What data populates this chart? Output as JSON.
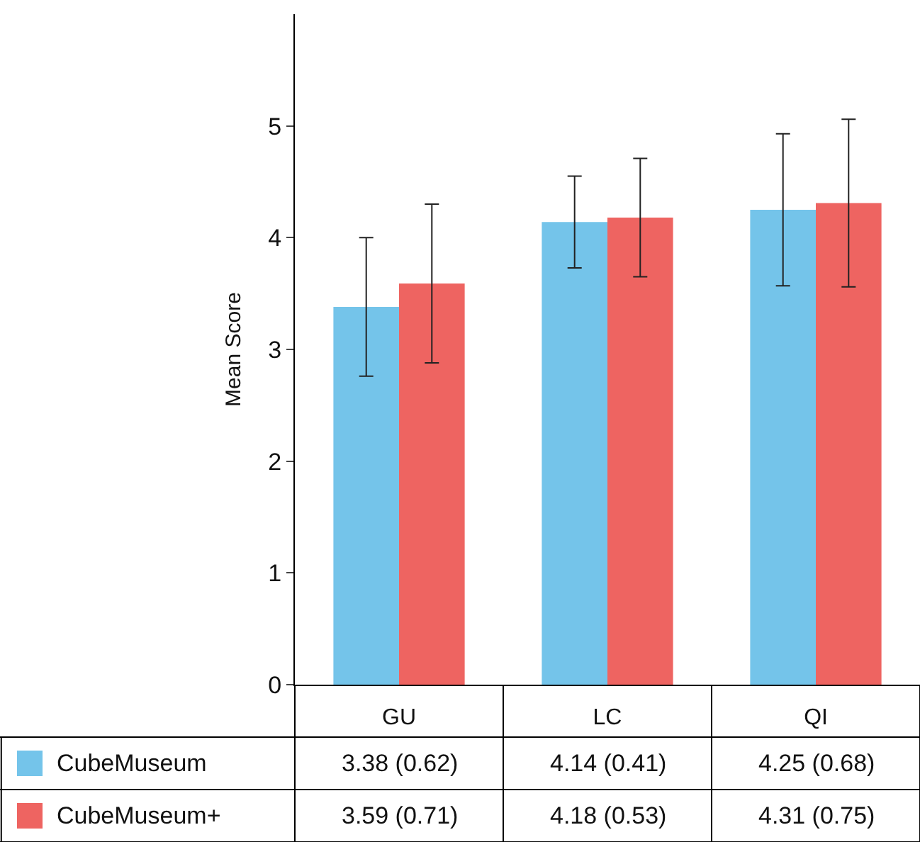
{
  "chart_data": {
    "type": "bar",
    "ylabel": "Mean Score",
    "categories": [
      "GU",
      "LC",
      "QI"
    ],
    "series": [
      {
        "name": "CubeMuseum",
        "color": "#74c4ea",
        "values": [
          3.38,
          4.14,
          4.25
        ],
        "errors": [
          0.62,
          0.41,
          0.68
        ],
        "value_labels": [
          "3.38 (0.62)",
          "4.14 (0.41)",
          "4.25 (0.68)"
        ]
      },
      {
        "name": "CubeMuseum+",
        "color": "#ee6461",
        "values": [
          3.59,
          4.18,
          4.31
        ],
        "errors": [
          0.71,
          0.53,
          0.75
        ],
        "value_labels": [
          "3.59 (0.71)",
          "4.18 (0.53)",
          "4.31 (0.75)"
        ]
      }
    ],
    "ylim": [
      0,
      6
    ],
    "yticks": [
      0,
      1,
      2,
      3,
      4,
      5
    ],
    "legend": "bottom left"
  }
}
